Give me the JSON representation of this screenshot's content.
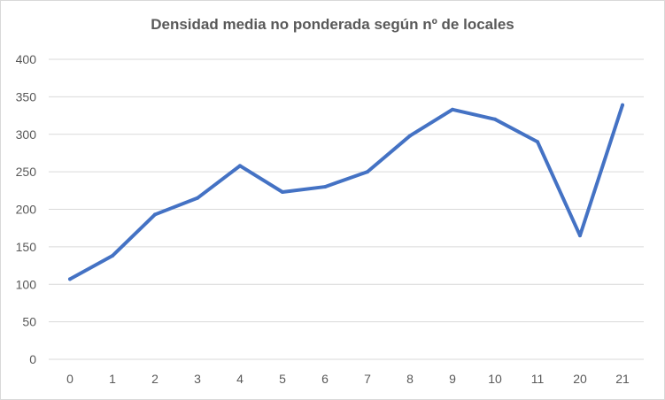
{
  "chart_data": {
    "type": "line",
    "title": "Densidad media no ponderada según nº de locales",
    "xlabel": "",
    "ylabel": "",
    "categories": [
      "0",
      "1",
      "2",
      "3",
      "4",
      "5",
      "6",
      "7",
      "8",
      "9",
      "10",
      "11",
      "20",
      "21"
    ],
    "series": [
      {
        "values": [
          107,
          138,
          193,
          215,
          258,
          223,
          230,
          250,
          298,
          333,
          320,
          290,
          165,
          339
        ]
      }
    ],
    "ylim": [
      0,
      400
    ],
    "yticks": [
      "0",
      "50",
      "100",
      "150",
      "200",
      "250",
      "300",
      "350",
      "400"
    ],
    "grid": "horizontal",
    "legend": "none",
    "colors": {
      "line": "#4472c4",
      "grid": "#d9d9d9",
      "text": "#595959"
    }
  }
}
